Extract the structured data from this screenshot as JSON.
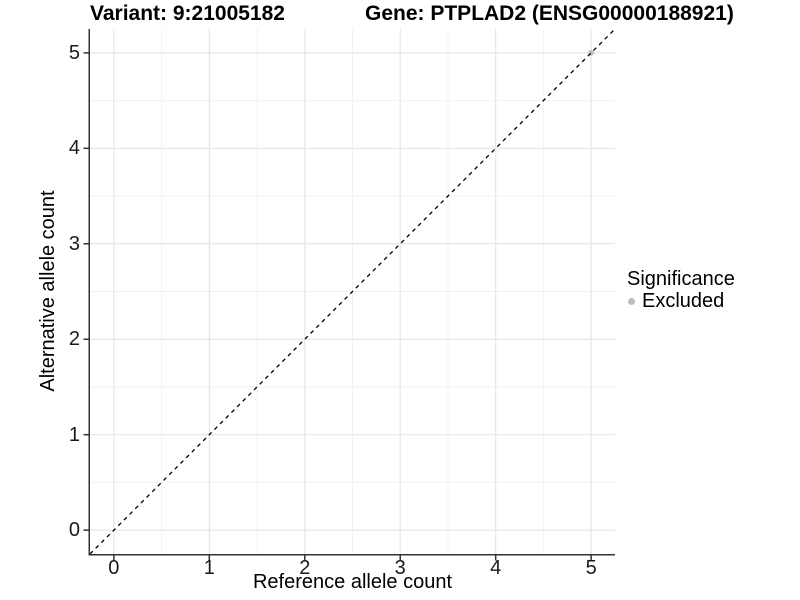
{
  "chart_data": {
    "type": "scatter",
    "titles": {
      "left": "Variant: 9:21005182",
      "right": "Gene: PTPLAD2 (ENSG00000188921)"
    },
    "xlabel": "Reference allele count",
    "ylabel": "Alternative allele count",
    "xticks": [
      0,
      1,
      2,
      3,
      4,
      5
    ],
    "yticks": [
      0,
      1,
      2,
      3,
      4,
      5
    ],
    "xlim": [
      -0.25,
      5.25
    ],
    "ylim": [
      -0.25,
      5.25
    ],
    "grid": "major and minor, minor at 0.5 steps",
    "minor_grid_step": 0.5,
    "reference_line": {
      "description": "identity line y = x",
      "slope": 1,
      "intercept": 0,
      "style": "dashed",
      "color": "#000000"
    },
    "series": [
      {
        "name": "Excluded",
        "color": "#bdbdbd",
        "points": [
          {
            "x": 5,
            "y": 5
          }
        ]
      }
    ],
    "legend": {
      "title": "Significance",
      "position": "right",
      "entries": [
        {
          "label": "Excluded",
          "color": "#bdbdbd"
        }
      ]
    },
    "colors": {
      "background": "#ffffff",
      "grid_major": "#e6e6e6",
      "grid_minor": "#f2f2f2",
      "axis": "#333333",
      "tick_label": "#1a1a1a",
      "title": "#000000"
    }
  }
}
